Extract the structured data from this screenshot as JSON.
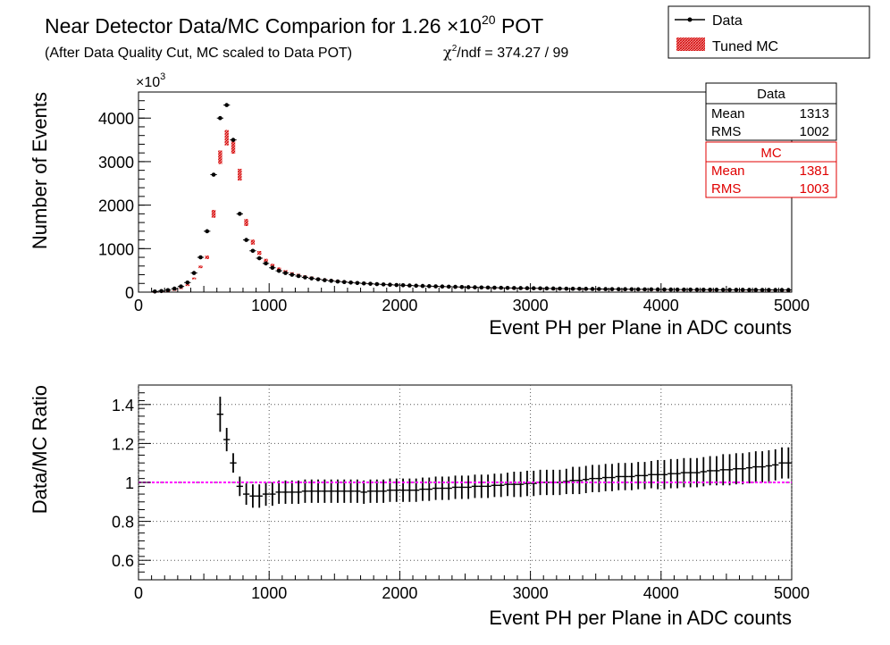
{
  "figure": {
    "title_main": "Near Detector Data/MC Comparion for 1.26 ×10",
    "title_exp": "20",
    "title_tail": " POT",
    "subtitle": "(After Data Quality Cut, MC scaled to Data POT)",
    "chi2_chi": "χ",
    "chi2_exp": "2",
    "chi2_rest": "/ndf = 374.27 / 99"
  },
  "legend": {
    "data_label": "Data",
    "mc_label": "Tuned MC"
  },
  "stats": {
    "data": {
      "title": "Data",
      "mean_label": "Mean",
      "mean_value": "1313",
      "rms_label": "RMS",
      "rms_value": "1002"
    },
    "mc": {
      "title": "MC",
      "mean_label": "Mean",
      "mean_value": "1381",
      "rms_label": "RMS",
      "rms_value": "1003"
    }
  },
  "colors": {
    "data": "#000000",
    "mc": "#e00000",
    "reference_line": "#ff00ff",
    "grid": "#555555"
  },
  "chart_data": [
    {
      "type": "scatter",
      "xlabel": "Event PH per Plane in ADC counts",
      "ylabel": "Number of Events",
      "y_multiplier_label": "×10",
      "y_multiplier_exp": "3",
      "xlim": [
        0,
        5000
      ],
      "ylim": [
        0,
        4600
      ],
      "x_ticks": [
        0,
        1000,
        2000,
        3000,
        4000,
        5000
      ],
      "y_ticks": [
        0,
        1000,
        2000,
        3000,
        4000
      ],
      "x_tick_labels": [
        "0",
        "1000",
        "2000",
        "3000",
        "4000",
        "5000"
      ],
      "y_tick_labels": [
        "0",
        "1000",
        "2000",
        "3000",
        "4000"
      ],
      "grid": false,
      "legend_position": "top-right",
      "bin_width": 50,
      "series": [
        {
          "name": "Data",
          "x": [
            125,
            175,
            225,
            275,
            325,
            375,
            425,
            475,
            525,
            575,
            625,
            675,
            725,
            775,
            825,
            875,
            925,
            975,
            1025,
            1075,
            1125,
            1175,
            1225,
            1275,
            1325,
            1375,
            1425,
            1475,
            1525,
            1575,
            1625,
            1675,
            1725,
            1775,
            1825,
            1875,
            1925,
            1975,
            2025,
            2075,
            2125,
            2175,
            2225,
            2275,
            2325,
            2375,
            2425,
            2475,
            2525,
            2575,
            2625,
            2675,
            2725,
            2775,
            2825,
            2875,
            2925,
            2975,
            3025,
            3075,
            3125,
            3175,
            3225,
            3275,
            3325,
            3375,
            3425,
            3475,
            3525,
            3575,
            3625,
            3675,
            3725,
            3775,
            3825,
            3875,
            3925,
            3975,
            4025,
            4075,
            4125,
            4175,
            4225,
            4275,
            4325,
            4375,
            4425,
            4475,
            4525,
            4575,
            4625,
            4675,
            4725,
            4775,
            4825,
            4875,
            4925,
            4975
          ],
          "values": [
            15,
            25,
            45,
            80,
            130,
            220,
            440,
            800,
            1400,
            2700,
            4000,
            4300,
            3500,
            1800,
            1200,
            950,
            780,
            660,
            560,
            490,
            440,
            400,
            370,
            340,
            315,
            295,
            275,
            260,
            245,
            232,
            220,
            210,
            200,
            192,
            184,
            177,
            170,
            164,
            158,
            152,
            147,
            142,
            137,
            133,
            129,
            125,
            121,
            117,
            114,
            111,
            108,
            105,
            102,
            99,
            97,
            95,
            93,
            91,
            89,
            87,
            85,
            83,
            81,
            79,
            78,
            76,
            75,
            73,
            72,
            70,
            69,
            68,
            67,
            66,
            65,
            64,
            63,
            62,
            61,
            60,
            59,
            58,
            58,
            57,
            56,
            56,
            55,
            54,
            54,
            53,
            53,
            52,
            52,
            51,
            51,
            50,
            50,
            50
          ]
        },
        {
          "name": "Tuned MC",
          "x": [
            125,
            175,
            225,
            275,
            325,
            375,
            425,
            475,
            525,
            575,
            625,
            675,
            725,
            775,
            825,
            875,
            925,
            975,
            1025,
            1075,
            1125,
            1175,
            1225,
            1275,
            1325,
            1375,
            1425,
            1475,
            1525,
            1575,
            1625,
            1675,
            1725,
            1775,
            1825,
            1875,
            1925,
            1975,
            2025,
            2075,
            2125,
            2175,
            2225,
            2275,
            2325,
            2375,
            2425,
            2475,
            2525,
            2575,
            2625,
            2675,
            2725,
            2775,
            2825,
            2875,
            2925,
            2975,
            3025,
            3075,
            3125,
            3175,
            3225,
            3275,
            3325,
            3375,
            3425,
            3475,
            3525,
            3575,
            3625,
            3675,
            3725,
            3775,
            3825,
            3875,
            3925,
            3975,
            4025,
            4075,
            4125,
            4175,
            4225,
            4275,
            4325,
            4375,
            4425,
            4475,
            4525,
            4575,
            4625,
            4675,
            4725,
            4775,
            4825,
            4875,
            4925,
            4975
          ],
          "values": [
            10,
            20,
            35,
            60,
            100,
            170,
            320,
            580,
            800,
            1800,
            3100,
            3550,
            3350,
            2700,
            1600,
            1150,
            900,
            730,
            620,
            540,
            480,
            435,
            400,
            365,
            340,
            315,
            295,
            278,
            262,
            248,
            235,
            223,
            212,
            202,
            193,
            185,
            178,
            171,
            164,
            158,
            153,
            148,
            142,
            137,
            133,
            128,
            124,
            120,
            116,
            112,
            109,
            105,
            102,
            99,
            96,
            93,
            91,
            89,
            87,
            85,
            83,
            81,
            79,
            77,
            76,
            74,
            72,
            71,
            69,
            68,
            66,
            65,
            64,
            63,
            62,
            61,
            60,
            59,
            58,
            57,
            56,
            55,
            55,
            54,
            53,
            52,
            52,
            51,
            50,
            50,
            49,
            49,
            48,
            48,
            47,
            47,
            47,
            46
          ]
        }
      ]
    },
    {
      "type": "scatter",
      "xlabel": "Event PH per Plane in ADC counts",
      "ylabel": "Data/MC Ratio",
      "xlim": [
        0,
        5000
      ],
      "ylim": [
        0.5,
        1.5
      ],
      "x_ticks": [
        0,
        1000,
        2000,
        3000,
        4000,
        5000
      ],
      "y_ticks": [
        0.6,
        0.8,
        1.0,
        1.2,
        1.4
      ],
      "x_tick_labels": [
        "0",
        "1000",
        "2000",
        "3000",
        "4000",
        "5000"
      ],
      "y_tick_labels": [
        "0.6",
        "0.8",
        "1",
        "1.2",
        "1.4"
      ],
      "grid": true,
      "reference_line": 1,
      "series": [
        {
          "name": "Data/MC Ratio",
          "x": [
            625,
            675,
            725,
            775,
            825,
            875,
            925,
            975,
            1025,
            1075,
            1125,
            1175,
            1225,
            1275,
            1325,
            1375,
            1425,
            1475,
            1525,
            1575,
            1625,
            1675,
            1725,
            1775,
            1825,
            1875,
            1925,
            1975,
            2025,
            2075,
            2125,
            2175,
            2225,
            2275,
            2325,
            2375,
            2425,
            2475,
            2525,
            2575,
            2625,
            2675,
            2725,
            2775,
            2825,
            2875,
            2925,
            2975,
            3025,
            3075,
            3125,
            3175,
            3225,
            3275,
            3325,
            3375,
            3425,
            3475,
            3525,
            3575,
            3625,
            3675,
            3725,
            3775,
            3825,
            3875,
            3925,
            3975,
            4025,
            4075,
            4125,
            4175,
            4225,
            4275,
            4325,
            4375,
            4425,
            4475,
            4525,
            4575,
            4625,
            4675,
            4725,
            4775,
            4825,
            4875,
            4925,
            4975
          ],
          "values": [
            1.35,
            1.22,
            1.1,
            0.98,
            0.94,
            0.93,
            0.93,
            0.94,
            0.94,
            0.95,
            0.95,
            0.95,
            0.95,
            0.955,
            0.955,
            0.955,
            0.955,
            0.955,
            0.955,
            0.955,
            0.955,
            0.955,
            0.95,
            0.955,
            0.955,
            0.955,
            0.96,
            0.96,
            0.96,
            0.96,
            0.96,
            0.965,
            0.965,
            0.97,
            0.97,
            0.97,
            0.975,
            0.975,
            0.975,
            0.98,
            0.98,
            0.98,
            0.985,
            0.985,
            0.99,
            0.99,
            0.99,
            0.995,
            0.995,
            1.0,
            1.0,
            1.0,
            1.0,
            1.005,
            1.01,
            1.01,
            1.015,
            1.02,
            1.02,
            1.025,
            1.025,
            1.03,
            1.03,
            1.03,
            1.035,
            1.035,
            1.04,
            1.04,
            1.04,
            1.045,
            1.045,
            1.05,
            1.05,
            1.05,
            1.055,
            1.06,
            1.06,
            1.065,
            1.065,
            1.07,
            1.07,
            1.075,
            1.08,
            1.08,
            1.085,
            1.09,
            1.1,
            1.1
          ],
          "errors": [
            0.09,
            0.06,
            0.05,
            0.05,
            0.055,
            0.06,
            0.06,
            0.06,
            0.06,
            0.06,
            0.06,
            0.06,
            0.06,
            0.06,
            0.06,
            0.06,
            0.06,
            0.06,
            0.06,
            0.06,
            0.06,
            0.06,
            0.06,
            0.06,
            0.06,
            0.06,
            0.06,
            0.06,
            0.06,
            0.06,
            0.06,
            0.06,
            0.06,
            0.06,
            0.06,
            0.06,
            0.06,
            0.06,
            0.06,
            0.06,
            0.06,
            0.06,
            0.06,
            0.06,
            0.06,
            0.065,
            0.065,
            0.065,
            0.065,
            0.065,
            0.065,
            0.065,
            0.065,
            0.065,
            0.07,
            0.07,
            0.07,
            0.07,
            0.07,
            0.07,
            0.07,
            0.07,
            0.07,
            0.07,
            0.07,
            0.07,
            0.07,
            0.075,
            0.075,
            0.075,
            0.075,
            0.075,
            0.075,
            0.075,
            0.075,
            0.075,
            0.075,
            0.08,
            0.08,
            0.08,
            0.08,
            0.08,
            0.08,
            0.08,
            0.08,
            0.08,
            0.08,
            0.08
          ]
        }
      ]
    }
  ]
}
